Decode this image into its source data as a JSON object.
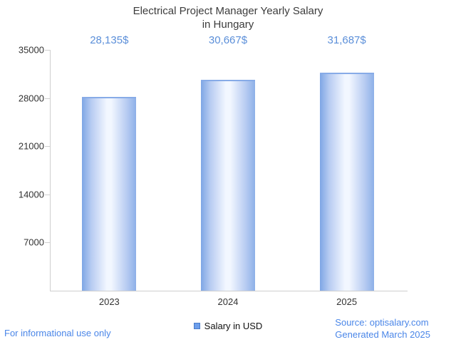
{
  "title": {
    "line1": "Electrical Project Manager Yearly Salary",
    "line2": "in Hungary"
  },
  "chart_data": {
    "type": "bar",
    "title": "Electrical Project Manager Yearly Salary in Hungary",
    "categories": [
      "2023",
      "2024",
      "2025"
    ],
    "values": [
      28135,
      30667,
      31687
    ],
    "value_labels": [
      "28,135$",
      "30,667$",
      "31,687$"
    ],
    "xlabel": "",
    "ylabel": "",
    "ylim": [
      0,
      35000
    ],
    "yticks": [
      7000,
      14000,
      21000,
      28000,
      35000
    ],
    "grid": false,
    "legend_entries": [
      "Salary in USD"
    ],
    "legend_position": "bottom-center",
    "bar_gradient": [
      "#7ea6e5",
      "#f2f7ff",
      "#8db0e8"
    ]
  },
  "legend": {
    "label": "Salary in USD",
    "swatch_color": "#6d9eeb"
  },
  "footer": {
    "left": "For informational use only",
    "source": "Source: optisalary.com",
    "generated": "Generated March 2025"
  },
  "colors": {
    "accent_text": "#4a86e8",
    "value_label": "#5b8fd9",
    "axis": "#cfcfcf",
    "text": "#333333"
  }
}
